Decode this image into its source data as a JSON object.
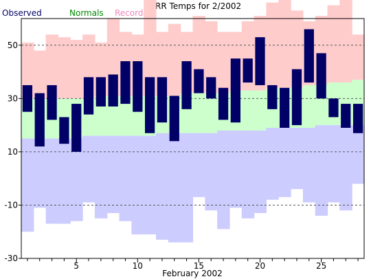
{
  "chart_data": {
    "type": "bar",
    "title": "KGRR Temps for 2/2002",
    "xlabel": "February 2002",
    "ylabel": "",
    "ylim": [
      -30,
      60
    ],
    "xlim": [
      0.5,
      28.5
    ],
    "legend": [
      {
        "name": "Observed",
        "color": "#000066"
      },
      {
        "name": "Normals",
        "color": "#008800"
      },
      {
        "name": "Records",
        "color": "#ee88bb"
      }
    ],
    "legend_position": "top-left",
    "y_ticks": [
      50,
      30,
      10,
      -10,
      -30
    ],
    "x_ticks": [
      5,
      10,
      15,
      20,
      25
    ],
    "grid": "horizontal dashed",
    "colors": {
      "record_band": "#ffcccc",
      "record_low_band": "#ccccff",
      "normal_band": "#ccffcc",
      "observed_bar": "#000066",
      "grid": "#555555",
      "axis": "#000000"
    },
    "days": [
      1,
      2,
      3,
      4,
      5,
      6,
      7,
      8,
      9,
      10,
      11,
      12,
      13,
      14,
      15,
      16,
      17,
      18,
      19,
      20,
      21,
      22,
      23,
      24,
      25,
      26,
      27,
      28
    ],
    "observed_high": [
      35,
      32,
      35,
      23,
      28,
      38,
      38,
      39,
      44,
      44,
      38,
      38,
      31,
      44,
      41,
      38,
      34,
      45,
      45,
      53,
      35,
      34,
      41,
      56,
      47,
      30,
      28,
      28
    ],
    "observed_low": [
      25,
      12,
      22,
      13,
      10,
      24,
      27,
      27,
      28,
      25,
      17,
      21,
      14,
      26,
      32,
      30,
      22,
      21,
      36,
      35,
      26,
      19,
      20,
      36,
      30,
      23,
      19,
      17
    ],
    "normal_high": [
      30,
      30,
      30,
      30,
      30,
      30,
      31,
      31,
      31,
      31,
      31,
      31,
      31,
      32,
      32,
      32,
      32,
      33,
      33,
      33,
      34,
      34,
      34,
      35,
      35,
      36,
      36,
      37
    ],
    "normal_low": [
      15,
      15,
      15,
      15,
      15,
      16,
      16,
      16,
      16,
      16,
      16,
      17,
      17,
      17,
      17,
      17,
      18,
      18,
      18,
      18,
      19,
      19,
      19,
      19,
      20,
      20,
      20,
      20
    ],
    "record_high": [
      51,
      48,
      54,
      53,
      52,
      54,
      51,
      60,
      55,
      54,
      69,
      55,
      58,
      55,
      61,
      59,
      55,
      55,
      59,
      61,
      66,
      67,
      63,
      59,
      61,
      65,
      67,
      54
    ],
    "record_low": [
      -20,
      -11,
      -17,
      -17,
      -16,
      -9,
      -15,
      -13,
      -16,
      -21,
      -21,
      -23,
      -24,
      -24,
      -7,
      -12,
      -19,
      -11,
      -15,
      -13,
      -8,
      -7,
      -4,
      -9,
      -14,
      -9,
      -12,
      -2
    ]
  }
}
